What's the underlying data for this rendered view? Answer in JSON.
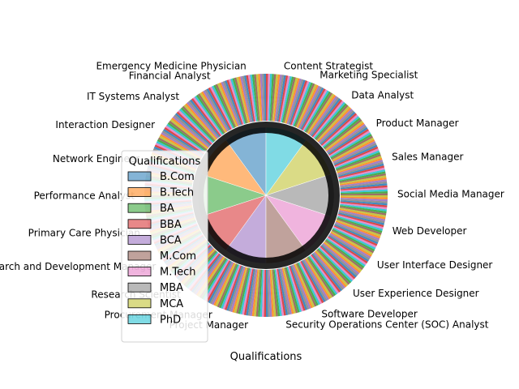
{
  "chart_data": {
    "type": "pie",
    "title": "",
    "xlabel": "Qualifications",
    "legend": {
      "title": "Qualifications",
      "placement": "lower-left",
      "entries": [
        {
          "name": "B.Com",
          "color": "#1f77b4"
        },
        {
          "name": "B.Tech",
          "color": "#ff7f0e"
        },
        {
          "name": "BA",
          "color": "#2ca02c"
        },
        {
          "name": "BBA",
          "color": "#d62728"
        },
        {
          "name": "BCA",
          "color": "#9467bd"
        },
        {
          "name": "M.Com",
          "color": "#8c564b"
        },
        {
          "name": "M.Tech",
          "color": "#e377c2"
        },
        {
          "name": "MBA",
          "color": "#7f7f7f"
        },
        {
          "name": "MCA",
          "color": "#bcbd22"
        },
        {
          "name": "PhD",
          "color": "#17becf"
        }
      ]
    },
    "inner_ring_slices": 10,
    "inner_ring_values": [
      10,
      10,
      10,
      10,
      10,
      10,
      10,
      10,
      10,
      10
    ],
    "outer_ring_slices": 380,
    "role_labels": [
      "Emergency Medicine Physician",
      "Financial Analyst",
      "IT Systems Analyst",
      "Interaction Designer",
      "Network Engineer",
      "Performance Analyst",
      "Primary Care Physician",
      "Research and Development Manager",
      "Research Scientist",
      "Procurement Manager",
      "Project Manager",
      "Security Operations Center (SOC) Analyst",
      "Software Developer",
      "User Experience Designer",
      "User Interface Designer",
      "Web Developer",
      "Social Media Manager",
      "Sales Manager",
      "Product Manager",
      "Data Analyst",
      "Marketing Specialist",
      "Content Strategist"
    ]
  }
}
